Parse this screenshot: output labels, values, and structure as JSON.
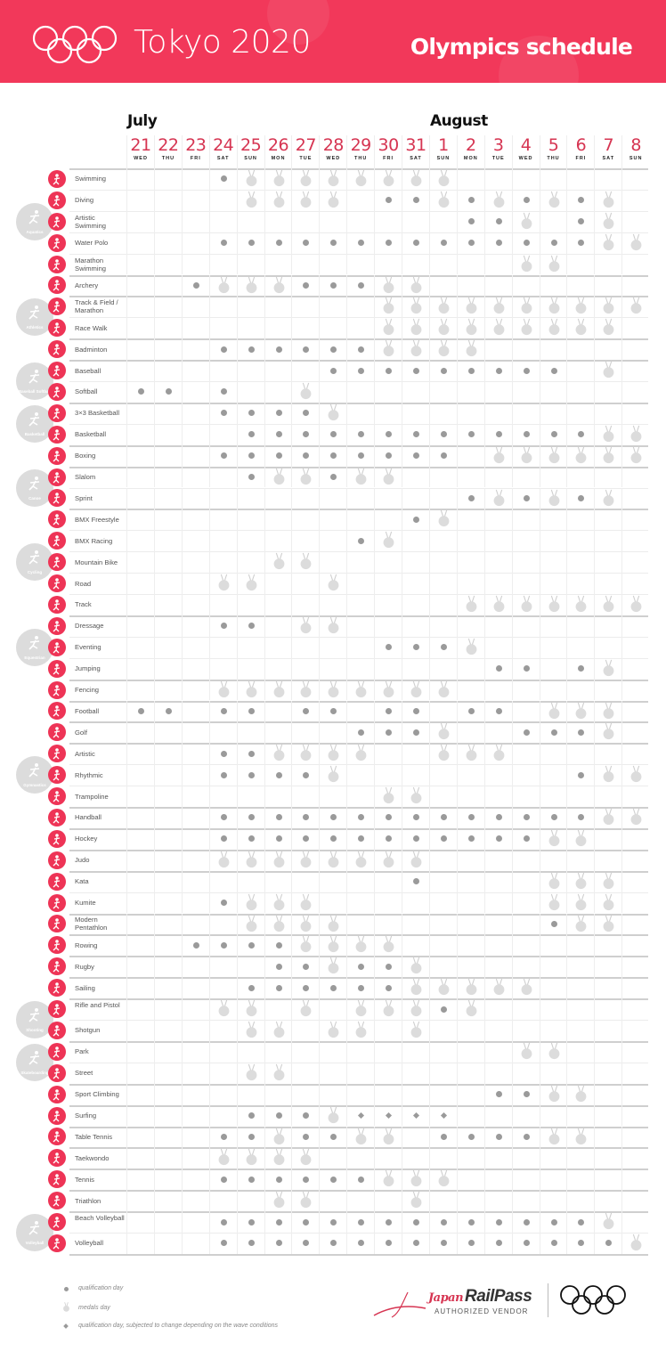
{
  "header": {
    "event": "Tokyo 2020",
    "title": "Olympics schedule",
    "brand_color": "#f2385a"
  },
  "months": [
    {
      "label": "July",
      "start_day": "21"
    },
    {
      "label": "August",
      "start_day": "1"
    }
  ],
  "dates": [
    {
      "day": "21",
      "dow": "WED"
    },
    {
      "day": "22",
      "dow": "THU"
    },
    {
      "day": "23",
      "dow": "FRI"
    },
    {
      "day": "24",
      "dow": "SAT"
    },
    {
      "day": "25",
      "dow": "SUN"
    },
    {
      "day": "26",
      "dow": "MON"
    },
    {
      "day": "27",
      "dow": "TUE"
    },
    {
      "day": "28",
      "dow": "WED"
    },
    {
      "day": "29",
      "dow": "THU"
    },
    {
      "day": "30",
      "dow": "FRI"
    },
    {
      "day": "31",
      "dow": "SAT"
    },
    {
      "day": "1",
      "dow": "SUN"
    },
    {
      "day": "2",
      "dow": "MON"
    },
    {
      "day": "3",
      "dow": "TUE"
    },
    {
      "day": "4",
      "dow": "WED"
    },
    {
      "day": "5",
      "dow": "THU"
    },
    {
      "day": "6",
      "dow": "FRI"
    },
    {
      "day": "7",
      "dow": "SAT"
    },
    {
      "day": "8",
      "dow": "SUN"
    }
  ],
  "marker_codes": {
    "q": "qualification day",
    "m": "medals day",
    "d": "qualification day, subjected to change depending on the wave conditions",
    ".": "none"
  },
  "groups": [
    {
      "name": "Aquatics",
      "sports": [
        {
          "name": "Swimming",
          "schedule": "...qmmmmmmmm......."
        },
        {
          "name": "Diving",
          "schedule": "....mmmm.qqmqmqmqm."
        },
        {
          "name": "Artistic Swimming",
          "schedule": "............qqm.qm."
        },
        {
          "name": "Water Polo",
          "schedule": "...qqqqqqqqqqqqqqmm"
        },
        {
          "name": "Marathon Swimming",
          "schedule": "..............mm..."
        }
      ]
    },
    {
      "name": "",
      "sports": [
        {
          "name": "Archery",
          "schedule": "..qmmmqqqmm........"
        }
      ]
    },
    {
      "name": "Athletics",
      "sports": [
        {
          "name": "Track & Field / Marathon",
          "schedule": ".........mmmmmmmmmm"
        },
        {
          "name": "Race Walk",
          "schedule": ".........mmmmmmmmm."
        }
      ]
    },
    {
      "name": "",
      "sports": [
        {
          "name": "Badminton",
          "schedule": "...qqqqqqmmmm......"
        }
      ]
    },
    {
      "name": "Baseball Softball",
      "sports": [
        {
          "name": "Baseball",
          "schedule": ".......qqqqqqqqq.m."
        },
        {
          "name": "Softball",
          "schedule": "qq.q..m............"
        }
      ]
    },
    {
      "name": "Basketball",
      "sports": [
        {
          "name": "3×3 Basketball",
          "schedule": "...qqqqm..........."
        },
        {
          "name": "Basketball",
          "schedule": "....qqqqqqqqqqqqqmm"
        }
      ]
    },
    {
      "name": "",
      "sports": [
        {
          "name": "Boxing",
          "schedule": "...qqqqqqqqq.mmmmmm"
        }
      ]
    },
    {
      "name": "Canoe",
      "sports": [
        {
          "name": "Slalom",
          "schedule": "....qmmqmm........."
        },
        {
          "name": "Sprint",
          "schedule": "............qmqmqm."
        }
      ]
    },
    {
      "name": "Cycling",
      "sports": [
        {
          "name": "BMX Freestyle",
          "schedule": "..........qm......."
        },
        {
          "name": "BMX Racing",
          "schedule": "........qm........."
        },
        {
          "name": "Mountain Bike",
          "schedule": ".....mm............"
        },
        {
          "name": "Road",
          "schedule": "...mm..m..........."
        },
        {
          "name": "Track",
          "schedule": "............mmmmmmm"
        }
      ]
    },
    {
      "name": "Equestrian",
      "sports": [
        {
          "name": "Dressage",
          "schedule": "...qq.mm..........."
        },
        {
          "name": "Eventing",
          "schedule": ".........qqqm......"
        },
        {
          "name": "Jumping",
          "schedule": ".............qq.qm."
        }
      ]
    },
    {
      "name": "",
      "sports": [
        {
          "name": "Fencing",
          "schedule": "...mmmmmmmmm......."
        }
      ]
    },
    {
      "name": "",
      "sports": [
        {
          "name": "Football",
          "schedule": "qq.qq.qq.qq.qq.mmm."
        }
      ]
    },
    {
      "name": "",
      "sports": [
        {
          "name": "Golf",
          "schedule": "........qqqm..qqqm."
        }
      ]
    },
    {
      "name": "Gymnastics",
      "sports": [
        {
          "name": "Artistic",
          "schedule": "...qqmmmm..mmm....."
        },
        {
          "name": "Rhythmic",
          "schedule": "...qqqqm........qmm"
        },
        {
          "name": "Trampoline",
          "schedule": ".........mm........"
        }
      ]
    },
    {
      "name": "",
      "sports": [
        {
          "name": "Handball",
          "schedule": "...qqqqqqqqqqqqqqmm"
        }
      ]
    },
    {
      "name": "",
      "sports": [
        {
          "name": "Hockey",
          "schedule": "...qqqqqqqqqqqqmm.."
        }
      ]
    },
    {
      "name": "",
      "sports": [
        {
          "name": "Judo",
          "schedule": "...mmmmmmmm........"
        }
      ]
    },
    {
      "name": "",
      "sports": [
        {
          "name": "Kata",
          "schedule": "..........q....mmm."
        },
        {
          "name": "Kumite",
          "schedule": "...qmmm........mmm."
        }
      ]
    },
    {
      "name": "",
      "sports": [
        {
          "name": "Modern Pentathlon",
          "schedule": "....mmmm.......qmm."
        }
      ]
    },
    {
      "name": "",
      "sports": [
        {
          "name": "Rowing",
          "schedule": "..qqqqmmmm........."
        }
      ]
    },
    {
      "name": "",
      "sports": [
        {
          "name": "Rugby",
          "schedule": ".....qqmqqm........"
        }
      ]
    },
    {
      "name": "",
      "sports": [
        {
          "name": "Sailing",
          "schedule": "....qqqqqqmmmmm...."
        }
      ]
    },
    {
      "name": "Shooting",
      "sports": [
        {
          "name": "Rifle and Pistol",
          "schedule": "...mm.m.mmmqm......"
        },
        {
          "name": "Shotgun",
          "schedule": "....mm.mm.m........"
        }
      ]
    },
    {
      "name": "Skateboarding",
      "sports": [
        {
          "name": "Park",
          "schedule": "..............mm..."
        },
        {
          "name": "Street",
          "schedule": "....mm............."
        }
      ]
    },
    {
      "name": "",
      "sports": [
        {
          "name": "Sport Climbing",
          "schedule": ".............qqmm.."
        }
      ]
    },
    {
      "name": "",
      "sports": [
        {
          "name": "Surfing",
          "schedule": "....qqqmdddd......."
        }
      ]
    },
    {
      "name": "",
      "sports": [
        {
          "name": "Table Tennis",
          "schedule": "...qqmqqmm.qqqqmm.."
        }
      ]
    },
    {
      "name": "",
      "sports": [
        {
          "name": "Taekwondo",
          "schedule": "...mmmm............"
        }
      ]
    },
    {
      "name": "",
      "sports": [
        {
          "name": "Tennis",
          "schedule": "...qqqqqqmmm......."
        }
      ]
    },
    {
      "name": "",
      "sports": [
        {
          "name": "Triathlon",
          "schedule": ".....mm...m........"
        }
      ]
    },
    {
      "name": "Volleyball",
      "sports": [
        {
          "name": "Beach Volleyball",
          "schedule": "...qqqqqqqqqqqqqqm."
        },
        {
          "name": "Volleyball",
          "schedule": "...qqqqqqqqqqqqqqqm"
        }
      ]
    }
  ],
  "legend": [
    {
      "symbol": "q",
      "label": "qualification day"
    },
    {
      "symbol": "m",
      "label": "medals day"
    },
    {
      "symbol": "d",
      "label": "qualification day, subjected to change depending on the wave conditions"
    }
  ],
  "footer": {
    "partner_script": "Japan",
    "partner_name": "RailPass",
    "partner_tagline": "AUTHORIZED VENDOR"
  },
  "colors": {
    "date": "#d63552",
    "sport_icon": "#ee3456",
    "qualification": "#9a9a9a",
    "medal": "#dcdcdc",
    "group_circle": "#dcdcdc"
  }
}
